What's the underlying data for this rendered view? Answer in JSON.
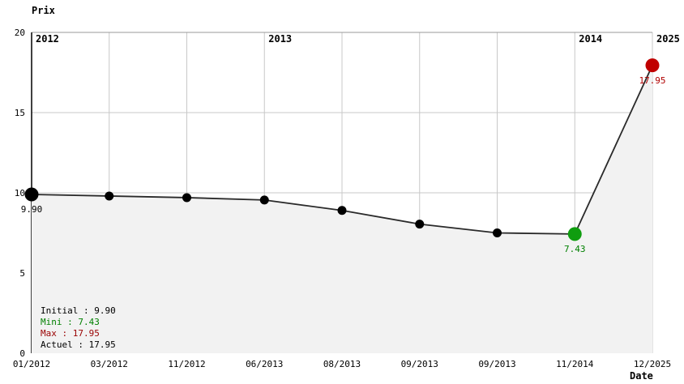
{
  "chart_data": {
    "type": "line",
    "title": "Prix",
    "xlabel": "Date",
    "ylabel": "Prix",
    "ylim": [
      0,
      20
    ],
    "y_ticks": [
      0,
      5,
      10,
      15,
      20
    ],
    "grid": true,
    "area_fill": true,
    "legend_position": "bottom-left",
    "categories": [
      "01/2012",
      "03/2012",
      "11/2012",
      "06/2013",
      "08/2013",
      "09/2013",
      "09/2013",
      "11/2014",
      "12/2025"
    ],
    "points": [
      {
        "date": "01/2012",
        "value": 9.9,
        "role": "initial",
        "size": "large",
        "color": "#000000",
        "label": "9.90",
        "label_color": "#000000"
      },
      {
        "date": "03/2012",
        "value": 9.8,
        "size": "small",
        "color": "#000000"
      },
      {
        "date": "11/2012",
        "value": 9.7,
        "size": "small",
        "color": "#000000"
      },
      {
        "date": "06/2013",
        "value": 9.55,
        "size": "small",
        "color": "#000000"
      },
      {
        "date": "08/2013",
        "value": 8.9,
        "size": "small",
        "color": "#000000"
      },
      {
        "date": "09/2013",
        "value": 8.05,
        "size": "small",
        "color": "#000000"
      },
      {
        "date": "09/2013",
        "value": 7.5,
        "size": "small",
        "color": "#000000"
      },
      {
        "date": "11/2014",
        "value": 7.43,
        "role": "min",
        "size": "large",
        "color": "#0f9d0f",
        "label": "7.43",
        "label_color": "#008000"
      },
      {
        "date": "12/2025",
        "value": 17.95,
        "role": "max",
        "size": "large",
        "color": "#c00000",
        "label": "17.95",
        "label_color": "#b00000"
      }
    ],
    "year_markers": [
      {
        "label": "2012",
        "index": 0
      },
      {
        "label": "2013",
        "index": 3
      },
      {
        "label": "2014",
        "index": 7
      },
      {
        "label": "2025",
        "index": 8
      }
    ]
  },
  "legend": {
    "items": [
      {
        "label": "Initial : 9.90",
        "color": "#000000"
      },
      {
        "label": "Mini : 7.43",
        "color": "#008000"
      },
      {
        "label": "Max : 17.95",
        "color": "#990000"
      },
      {
        "label": "Actuel : 17.95",
        "color": "#000000"
      }
    ]
  },
  "colors": {
    "background": "#ffffff",
    "line": "#2a2a2a",
    "area_fill": "#f2f2f2",
    "grid": "#c8c8c8",
    "axis": "#000000",
    "top_border": "#999999",
    "min_point": "#0f9d0f",
    "max_point": "#c00000",
    "initial_point": "#000000"
  }
}
